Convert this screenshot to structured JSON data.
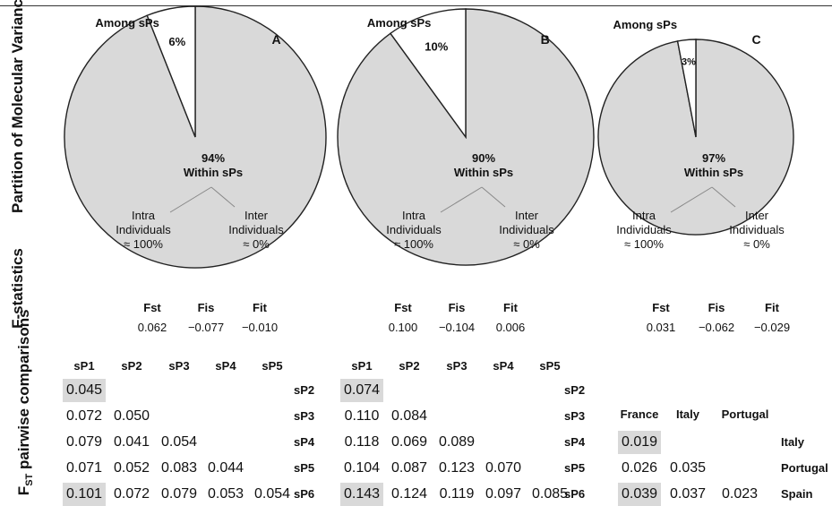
{
  "row_labels": {
    "amova": "Partition of Molecular Variance (AMOVA)",
    "fstats": "F-statistics",
    "fst_prefix": "F",
    "fst_sub": "ST",
    "fst_suffix": " pairwise comparisons"
  },
  "colors": {
    "within_fill": "#d9d9d9",
    "among_fill": "#ffffff",
    "outline": "#222222",
    "highlight": "#d9d9d9"
  },
  "chart_data": [
    {
      "type": "pie",
      "panel": "A",
      "slices": [
        {
          "label": "Among sPs",
          "value": 6,
          "value_label": "6%"
        },
        {
          "label": "Within sPs",
          "value": 94,
          "value_label": "94%"
        }
      ],
      "within_split": {
        "intra": "Intra\nIndividuals\n≈ 100%",
        "inter": "Inter\nIndividuals\n≈ 0%"
      },
      "f_statistics": {
        "headers": [
          "Fst",
          "Fis",
          "Fit"
        ],
        "values": [
          "0.062",
          "−0.077",
          "−0.010"
        ]
      },
      "pairwise": {
        "columns": [
          "sP1",
          "sP2",
          "sP3",
          "sP4",
          "sP5"
        ],
        "rows": [
          "sP2",
          "sP3",
          "sP4",
          "sP5",
          "sP6"
        ],
        "values": [
          [
            "0.045"
          ],
          [
            "0.072",
            "0.050"
          ],
          [
            "0.079",
            "0.041",
            "0.054"
          ],
          [
            "0.071",
            "0.052",
            "0.083",
            "0.044"
          ],
          [
            "0.101",
            "0.072",
            "0.079",
            "0.053",
            "0.054"
          ]
        ],
        "highlight": [
          [
            0,
            0
          ],
          [
            4,
            0
          ]
        ]
      }
    },
    {
      "type": "pie",
      "panel": "B",
      "slices": [
        {
          "label": "Among sPs",
          "value": 10,
          "value_label": "10%"
        },
        {
          "label": "Within sPs",
          "value": 90,
          "value_label": "90%"
        }
      ],
      "within_split": {
        "intra": "Intra\nIndividuals\n≈ 100%",
        "inter": "Inter\nIndividuals\n≈ 0%"
      },
      "f_statistics": {
        "headers": [
          "Fst",
          "Fis",
          "Fit"
        ],
        "values": [
          "0.100",
          "−0.104",
          "0.006"
        ]
      },
      "pairwise": {
        "columns": [
          "sP1",
          "sP2",
          "sP3",
          "sP4",
          "sP5"
        ],
        "rows": [
          "sP2",
          "sP3",
          "sP4",
          "sP5",
          "sP6"
        ],
        "values": [
          [
            "0.074"
          ],
          [
            "0.110",
            "0.084"
          ],
          [
            "0.118",
            "0.069",
            "0.089"
          ],
          [
            "0.104",
            "0.087",
            "0.123",
            "0.070"
          ],
          [
            "0.143",
            "0.124",
            "0.119",
            "0.097",
            "0.085"
          ]
        ],
        "highlight": [
          [
            0,
            0
          ],
          [
            4,
            0
          ]
        ]
      }
    },
    {
      "type": "pie",
      "panel": "C",
      "slices": [
        {
          "label": "Among sPs",
          "value": 3,
          "value_label": "3%"
        },
        {
          "label": "Within sPs",
          "value": 97,
          "value_label": "97%"
        }
      ],
      "within_split": {
        "intra": "Intra\nIndividuals\n≈ 100%",
        "inter": "Inter\nIndividuals\n≈ 0%"
      },
      "f_statistics": {
        "headers": [
          "Fst",
          "Fis",
          "Fit"
        ],
        "values": [
          "0.031",
          "−0.062",
          "−0.029"
        ]
      },
      "pairwise": {
        "columns": [
          "France",
          "Italy",
          "Portugal"
        ],
        "rows": [
          "Italy",
          "Portugal",
          "Spain"
        ],
        "values": [
          [
            "0.019"
          ],
          [
            "0.026",
            "0.035"
          ],
          [
            "0.039",
            "0.037",
            "0.023"
          ]
        ],
        "highlight": [
          [
            0,
            0
          ],
          [
            2,
            0
          ]
        ]
      }
    }
  ]
}
